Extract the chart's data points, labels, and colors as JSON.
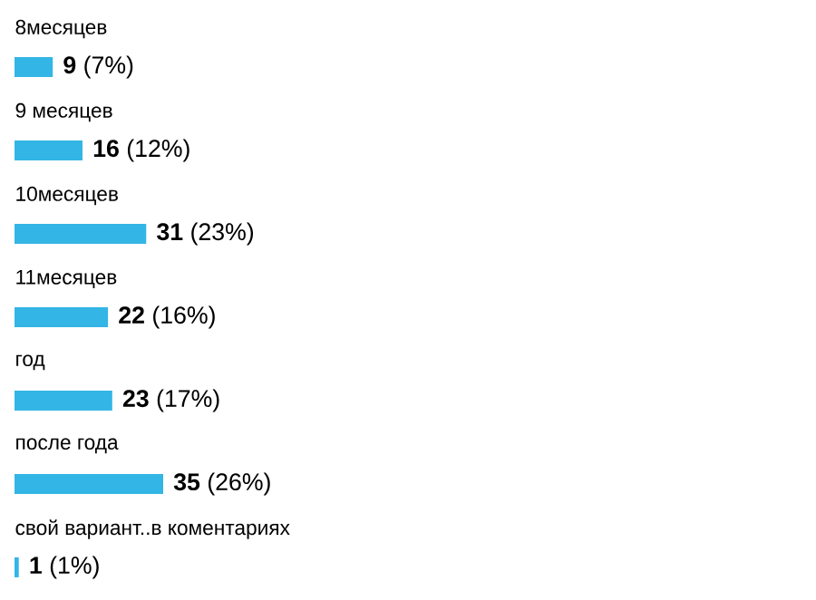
{
  "chart_data": {
    "type": "bar",
    "orientation": "horizontal",
    "categories": [
      "8месяцев",
      "9 месяцев",
      "10месяцев",
      "11месяцев",
      "год",
      "после года",
      "свой вариант..в коментариях"
    ],
    "values": [
      9,
      16,
      31,
      22,
      23,
      35,
      1
    ],
    "value_labels": [
      "**9** (7%)",
      "**16** (12%)",
      "**31** (23%)",
      "**22** (16%)",
      "**23** (17%)",
      "**35** (26%)",
      "**1** (1%)"
    ],
    "color": "#33b5e5"
  }
}
